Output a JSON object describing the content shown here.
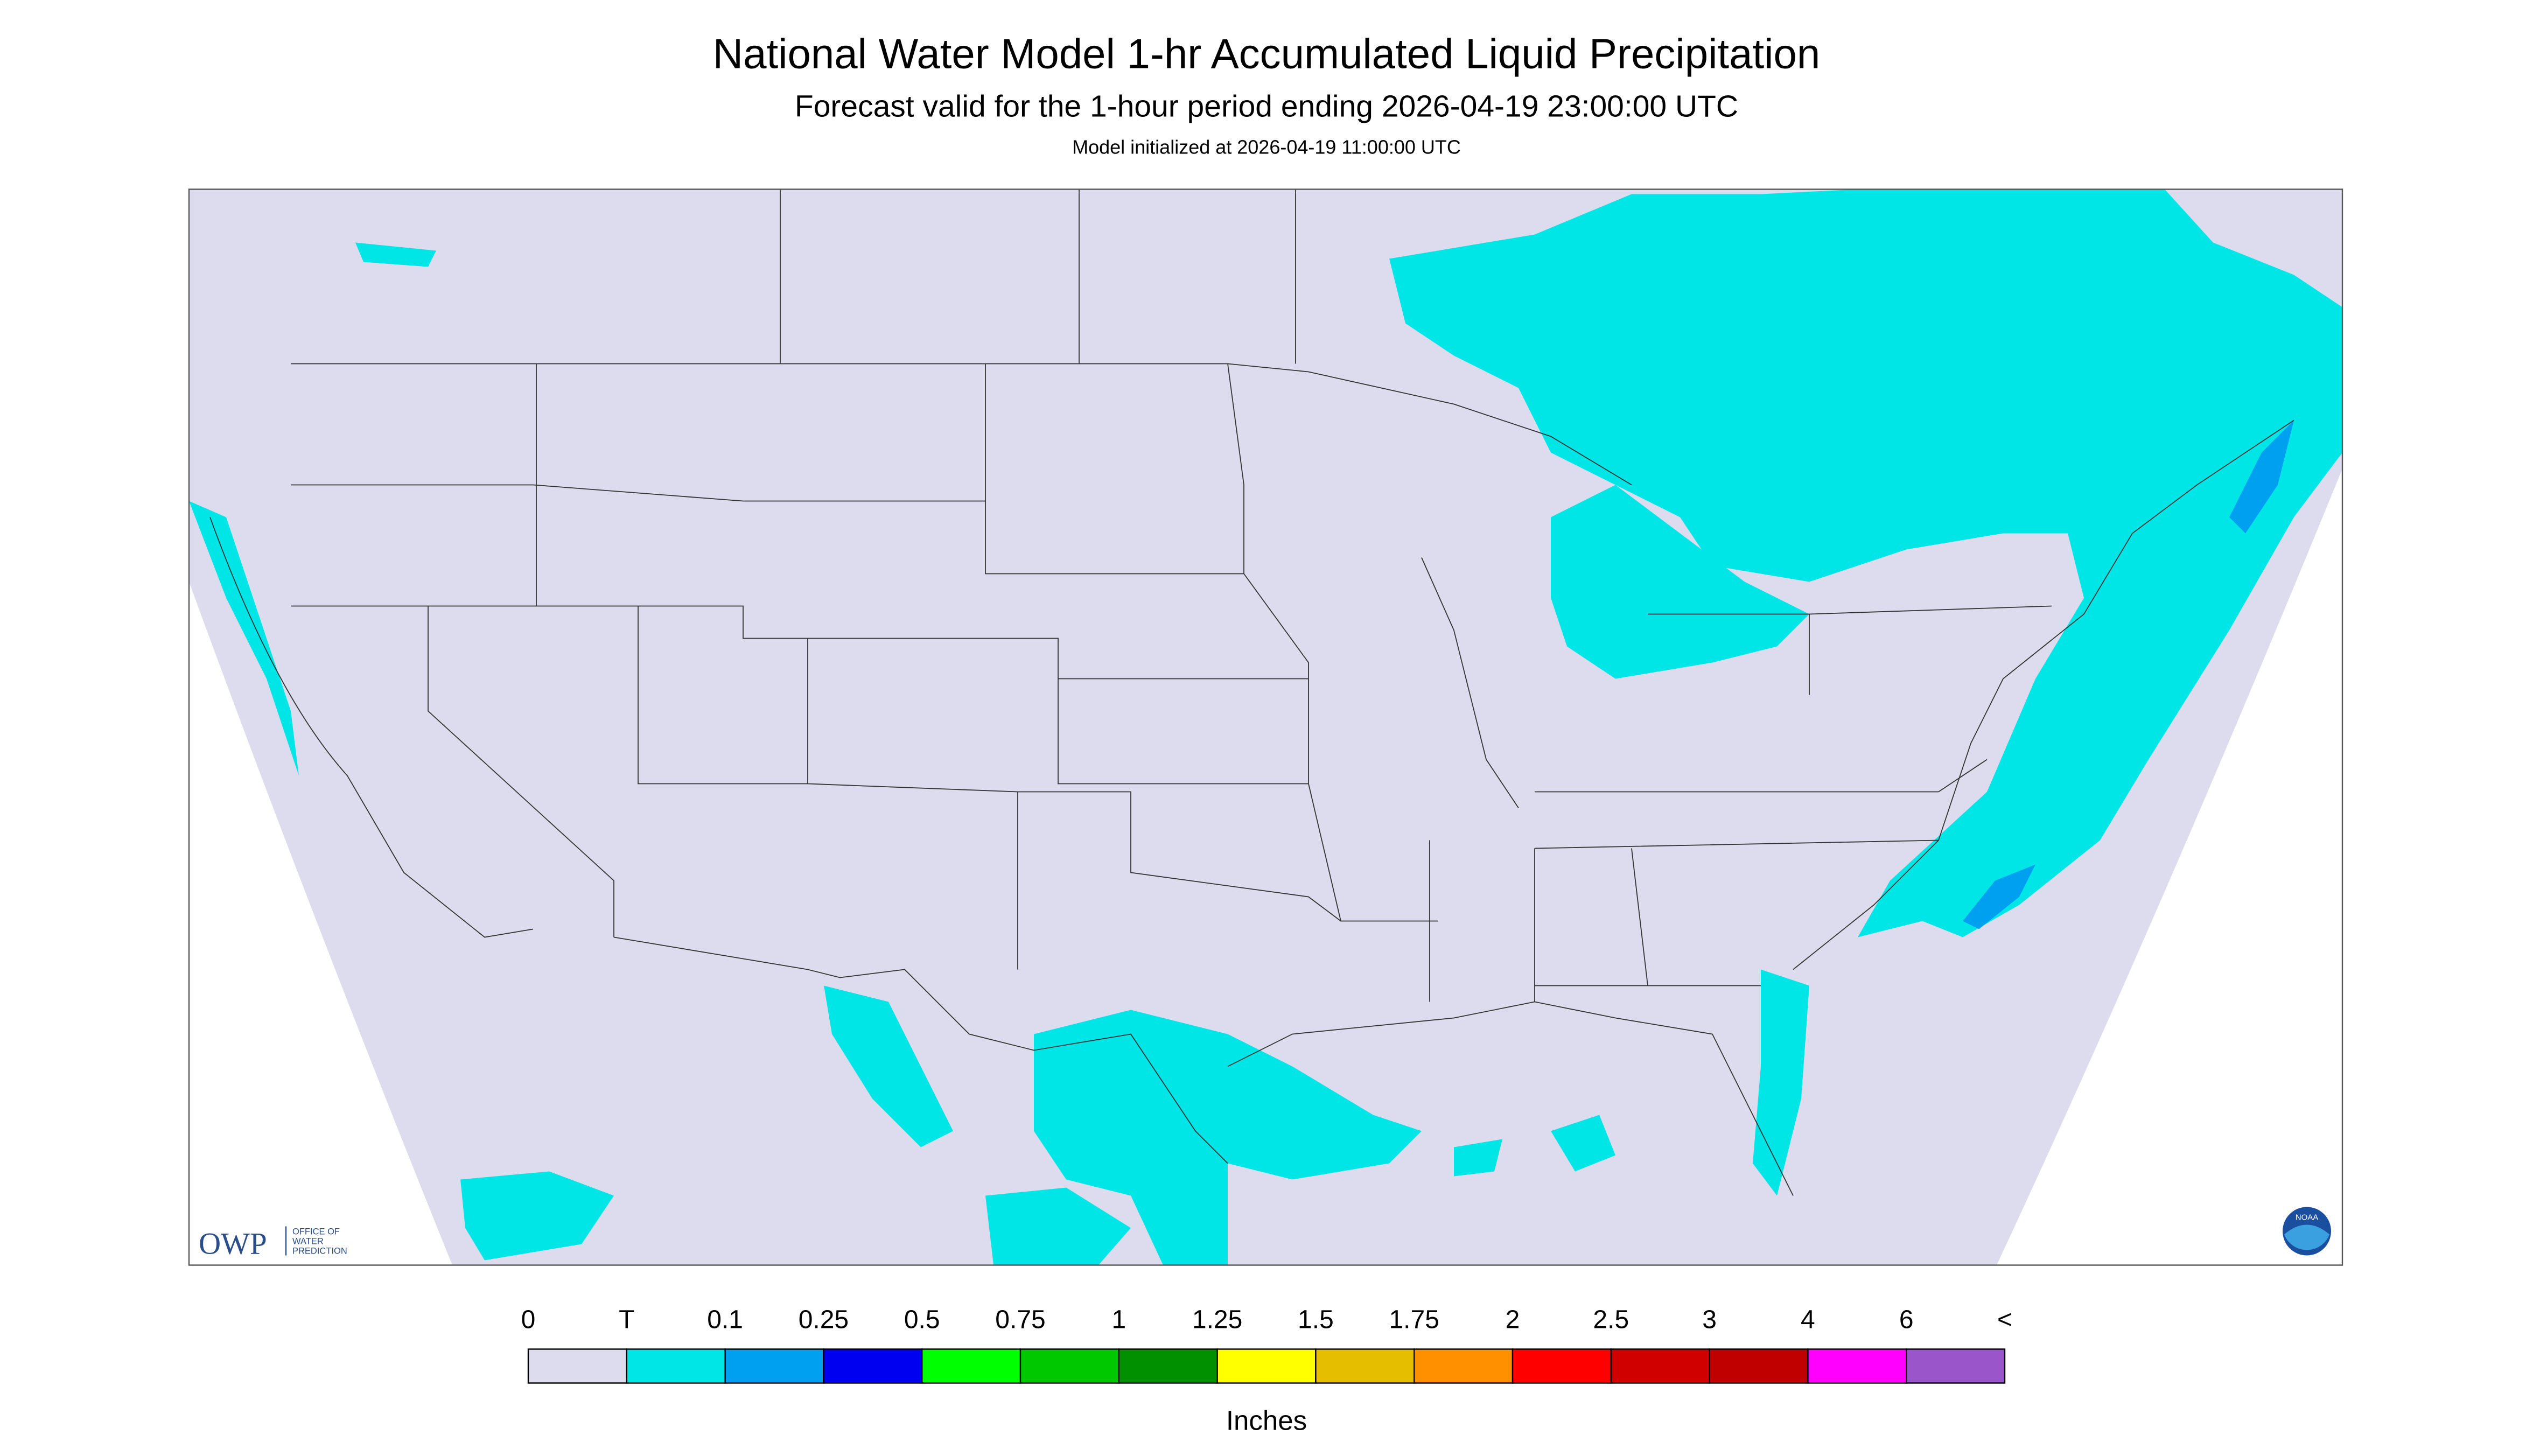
{
  "header": {
    "title": "National Water Model 1-hr Accumulated Liquid Precipitation",
    "subtitle": "Forecast valid for the 1-hour period ending 2026-04-19 23:00:00 UTC",
    "init": "Model initialized at 2026-04-19 11:00:00 UTC"
  },
  "legend": {
    "labels": [
      "0",
      "T",
      "0.1",
      "0.25",
      "0.5",
      "0.75",
      "1",
      "1.25",
      "1.5",
      "1.75",
      "2",
      "2.5",
      "3",
      "4",
      "6",
      "<"
    ],
    "colors": [
      "#dcdcee",
      "#00e6e6",
      "#00a0f0",
      "#0000f0",
      "#00ff00",
      "#00c800",
      "#009000",
      "#ffff00",
      "#e6be00",
      "#ff9000",
      "#ff0000",
      "#d00000",
      "#c00000",
      "#ff00ff",
      "#9955c9"
    ],
    "unit": "Inches"
  },
  "logos": {
    "owp": "OWP",
    "owp_line1": "OFFICE OF",
    "owp_line2": "WATER",
    "owp_line3": "PREDICTION",
    "noaa": "NOAA"
  }
}
